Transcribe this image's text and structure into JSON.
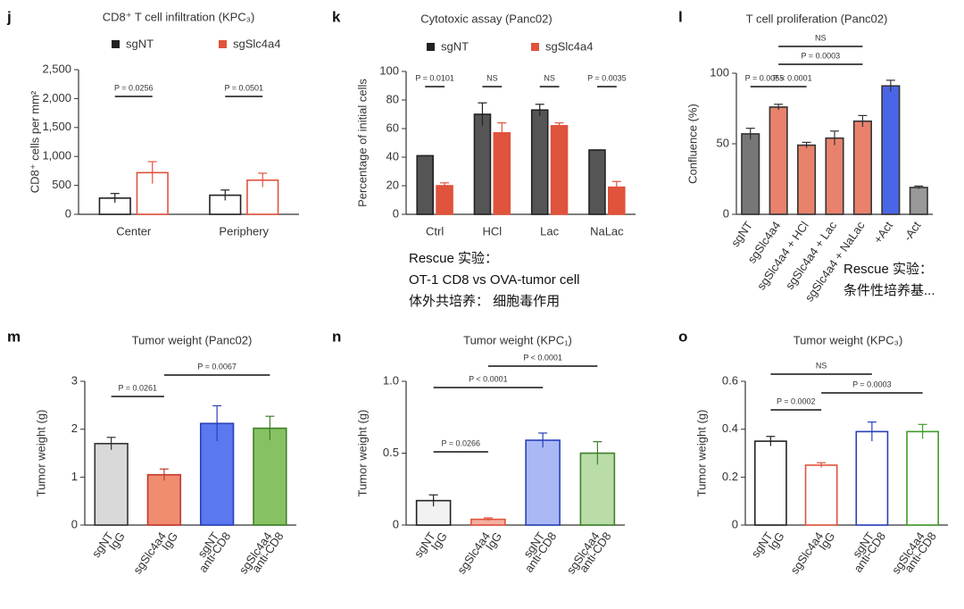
{
  "chart_data": [
    {
      "type": "bar",
      "label": "j",
      "title": "CD8⁺ T cell infiltration (KPC₃)",
      "ylabel": "CD8⁺ cells per mm²",
      "categories": [
        "Center",
        "Periphery"
      ],
      "series": [
        {
          "name": "sgNT",
          "color": "#222222",
          "fill": "#ffffff",
          "values": [
            280,
            330
          ],
          "errors": [
            80,
            90
          ]
        },
        {
          "name": "sgSlc4a4",
          "color": "#e0533c",
          "fill": "#ffffff",
          "values": [
            720,
            590
          ],
          "errors": [
            190,
            120
          ]
        }
      ],
      "ylim": [
        0,
        2500
      ],
      "yticks": [
        0,
        500,
        {
          "value": 1000,
          "label": "1,000"
        },
        {
          "value": 1500,
          "label": "1,500"
        },
        {
          "value": 2000,
          "label": "2,000"
        },
        {
          "value": 2500,
          "label": "2,500"
        }
      ],
      "annotations": [
        "P = 0.0256",
        "P = 0.0501"
      ]
    },
    {
      "type": "bar",
      "label": "k",
      "title": "Cytotoxic assay (Panc02)",
      "ylabel": "Percentage of initial cells",
      "categories": [
        "Ctrl",
        "HCl",
        "Lac",
        "NaLac"
      ],
      "series": [
        {
          "name": "sgNT",
          "color": "#222222",
          "fill": "#555555",
          "values": [
            41,
            70,
            73,
            45
          ],
          "errors": [
            0,
            8,
            4,
            0
          ]
        },
        {
          "name": "sgSlc4a4",
          "color": "#e0533c",
          "fill": "#e0533c",
          "values": [
            20,
            57,
            62,
            19
          ],
          "errors": [
            2,
            7,
            2,
            4
          ]
        }
      ],
      "ylim": [
        0,
        100
      ],
      "yticks": [
        0,
        20,
        40,
        60,
        80,
        100
      ],
      "annotations": [
        "P = 0.0101",
        "NS",
        "NS",
        "P = 0.0035"
      ]
    },
    {
      "type": "bar",
      "label": "l",
      "title": "T cell proliferation (Panc02)",
      "ylabel": "Confluence (%)",
      "categories": [
        [
          "sgNT"
        ],
        [
          "sgSlc4a4"
        ],
        [
          "sgSlc4a4 + HCl"
        ],
        [
          "sgSlc4a4 + Lac"
        ],
        [
          "sgSlc4a4 + NaLac"
        ],
        [
          "+Act"
        ],
        [
          "-Act"
        ]
      ],
      "values": [
        57,
        76,
        49,
        54,
        66,
        91,
        19
      ],
      "errors": [
        4,
        2,
        2,
        5,
        4,
        4,
        1
      ],
      "colors": [
        "#777777",
        "#e8826c",
        "#e8826c",
        "#e8826c",
        "#e8826c",
        "#4a66e8",
        "#999999"
      ],
      "edge_colors": [
        "#333333",
        "#333333",
        "#333333",
        "#333333",
        "#333333",
        "#333333",
        "#333333"
      ],
      "ylim": [
        0,
        100
      ],
      "yticks": [
        0,
        50,
        100
      ],
      "annotations": [
        "P = 0.0055",
        "P < 0.0001",
        "P = 0.0003",
        "NS"
      ]
    },
    {
      "type": "bar",
      "label": "m",
      "title": "Tumor weight (Panc02)",
      "ylabel": "Tumor weight (g)",
      "categories": [
        [
          "sgNT",
          "IgG"
        ],
        [
          "sgSlc4a4",
          "IgG"
        ],
        [
          "sgNT",
          "anti-CD8"
        ],
        [
          "sgSlc4a4",
          "anti-CD8"
        ]
      ],
      "values": [
        1.7,
        1.05,
        2.12,
        2.02
      ],
      "errors": [
        0.13,
        0.12,
        0.37,
        0.25
      ],
      "colors": [
        "#d9d9d9",
        "#f08c70",
        "#5a78f0",
        "#86c263"
      ],
      "edge_colors": [
        "#333333",
        "#c0392b",
        "#2940b8",
        "#3f7f2a"
      ],
      "ylim": [
        0,
        3
      ],
      "yticks": [
        0,
        1,
        2,
        3
      ],
      "annotations": [
        "P = 0.0261",
        "P = 0.0067"
      ]
    },
    {
      "type": "bar",
      "label": "n",
      "title": "Tumor weight (KPC₁)",
      "ylabel": "Tumor weight (g)",
      "categories": [
        [
          "sgNT",
          "IgG"
        ],
        [
          "sgSlc4a4",
          "IgG"
        ],
        [
          "sgNT",
          "anti-CD8"
        ],
        [
          "sgSlc4a4",
          "anti-CD8"
        ]
      ],
      "values": [
        0.17,
        0.04,
        0.59,
        0.5
      ],
      "errors": [
        0.04,
        0.01,
        0.05,
        0.08
      ],
      "colors": [
        "#f2f2f2",
        "#f3b0a0",
        "#aab8f5",
        "#b9dca8"
      ],
      "edge_colors": [
        "#222222",
        "#e0533c",
        "#2940b8",
        "#3f7f2a"
      ],
      "ylim": [
        0,
        1
      ],
      "yticks": [
        0,
        0.5,
        {
          "value": 1,
          "label": "1.0"
        }
      ],
      "annotations": [
        "P = 0.0266",
        "P < 0.0001",
        "P < 0.0001"
      ]
    },
    {
      "type": "bar",
      "label": "o",
      "title": "Tumor weight (KPC₃)",
      "ylabel": "Tumor weight (g)",
      "categories": [
        [
          "sgNT",
          "IgG"
        ],
        [
          "sgSlc4a4",
          "IgG"
        ],
        [
          "sgNT",
          "anti-CD8"
        ],
        [
          "sgSlc4a4",
          "anti-CD8"
        ]
      ],
      "values": [
        0.35,
        0.25,
        0.39,
        0.39
      ],
      "errors": [
        0.02,
        0.01,
        0.04,
        0.03
      ],
      "colors": [
        "#ffffff",
        "#ffffff",
        "#ffffff",
        "#ffffff"
      ],
      "edge_colors": [
        "#222222",
        "#e0533c",
        "#2940b8",
        "#3f9a2a"
      ],
      "ylim": [
        0,
        0.6
      ],
      "yticks": [
        0,
        0.2,
        0.4,
        0.6
      ],
      "annotations": [
        "P = 0.0002",
        "P = 0.0003",
        "NS"
      ]
    }
  ],
  "notes": [
    {
      "lines": [
        "Rescue 实验：",
        "OT-1 CD8 vs OVA-tumor cell",
        "体外共培养： 细胞毒作用"
      ]
    },
    {
      "lines": [
        "Rescue 实验：",
        "条件性培养基..."
      ]
    }
  ]
}
